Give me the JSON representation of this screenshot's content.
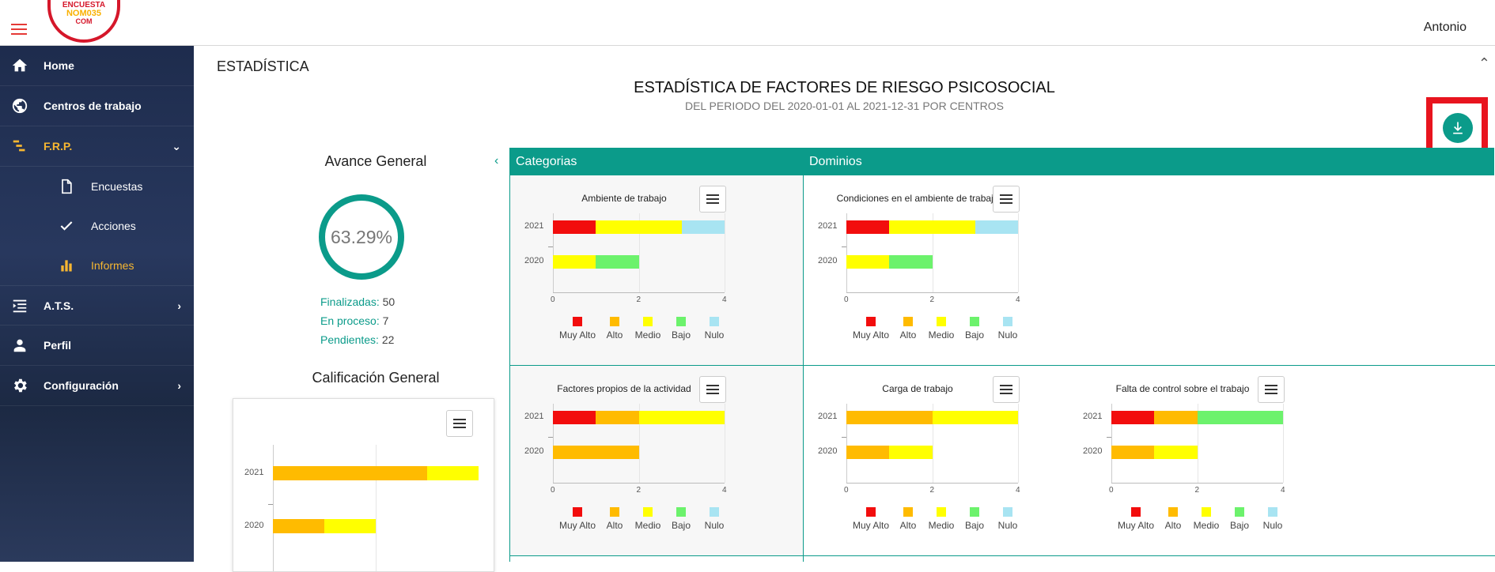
{
  "header": {
    "logo": {
      "line1": "ENCUESTA",
      "line2": "NOM035",
      "line3": "COM"
    },
    "user_name": "Antonio"
  },
  "sidebar": {
    "items": [
      {
        "label": "Home",
        "icon": "home-icon"
      },
      {
        "label": "Centros de trabajo",
        "icon": "globe-icon"
      },
      {
        "label": "F.R.P.",
        "icon": "frp-icon"
      },
      {
        "label": "A.T.S.",
        "icon": "list-indent-icon"
      },
      {
        "label": "Perfil",
        "icon": "person-icon"
      },
      {
        "label": "Configuración",
        "icon": "gear-icon"
      }
    ],
    "subitems": [
      {
        "label": "Encuestas",
        "icon": "document-icon"
      },
      {
        "label": "Acciones",
        "icon": "check-icon"
      },
      {
        "label": "Informes",
        "icon": "bar-chart-icon"
      }
    ]
  },
  "page": {
    "title": "ESTADÍSTICA",
    "main_title": "ESTADÍSTICA DE FACTORES DE RIESGO PSICOSOCIAL",
    "subtitle": "DEL PERIODO DEL 2020-01-01 AL 2021-12-31 POR CENTROS",
    "download_icon": "download-icon"
  },
  "avance": {
    "title": "Avance General",
    "percent": "63.29%",
    "finalizadas_label": "Finalizadas:",
    "finalizadas_value": "50",
    "proceso_label": "En proceso:",
    "proceso_value": "7",
    "pendientes_label": "Pendientes:",
    "pendientes_value": "22"
  },
  "calificacion": {
    "title": "Calificación General"
  },
  "panels": {
    "categorias": "Categorias",
    "dominios": "Dominios"
  },
  "legend": [
    "Muy Alto",
    "Alto",
    "Medio",
    "Bajo",
    "Nulo"
  ],
  "colors": {
    "Muy Alto": "#f20d0d",
    "Alto": "#ffbb00",
    "Medio": "#ffff00",
    "Bajo": "#6cf26c",
    "Nulo": "#a8e4f2",
    "teal": "#0b9b8a"
  },
  "chart_data": [
    {
      "type": "bar",
      "title": "Calificación General",
      "stacked": true,
      "categories": [
        "2021",
        "2020"
      ],
      "series": [
        {
          "name": "Alto",
          "values": [
            3,
            1
          ]
        },
        {
          "name": "Medio",
          "values": [
            1,
            1
          ]
        }
      ],
      "xlim": [
        0,
        4
      ]
    },
    {
      "type": "bar",
      "title": "Ambiente de trabajo",
      "stacked": true,
      "categories": [
        "2021",
        "2020"
      ],
      "series": [
        {
          "name": "Muy Alto",
          "values": [
            1,
            0
          ]
        },
        {
          "name": "Alto",
          "values": [
            0,
            0
          ]
        },
        {
          "name": "Medio",
          "values": [
            2,
            1
          ]
        },
        {
          "name": "Bajo",
          "values": [
            0,
            1
          ]
        },
        {
          "name": "Nulo",
          "values": [
            1,
            0
          ]
        }
      ],
      "xticks": [
        "0",
        "2",
        "4"
      ],
      "xlim": [
        0,
        4
      ]
    },
    {
      "type": "bar",
      "title": "Condiciones en el ambiente de trabajo",
      "stacked": true,
      "categories": [
        "2021",
        "2020"
      ],
      "series": [
        {
          "name": "Muy Alto",
          "values": [
            1,
            0
          ]
        },
        {
          "name": "Alto",
          "values": [
            0,
            0
          ]
        },
        {
          "name": "Medio",
          "values": [
            2,
            1
          ]
        },
        {
          "name": "Bajo",
          "values": [
            0,
            1
          ]
        },
        {
          "name": "Nulo",
          "values": [
            1,
            0
          ]
        }
      ],
      "xticks": [
        "0",
        "2",
        "4"
      ],
      "xlim": [
        0,
        4
      ]
    },
    {
      "type": "bar",
      "title": "Factores propios de la actividad",
      "stacked": true,
      "categories": [
        "2021",
        "2020"
      ],
      "series": [
        {
          "name": "Muy Alto",
          "values": [
            1,
            0
          ]
        },
        {
          "name": "Alto",
          "values": [
            1,
            2
          ]
        },
        {
          "name": "Medio",
          "values": [
            2,
            0
          ]
        },
        {
          "name": "Bajo",
          "values": [
            0,
            0
          ]
        },
        {
          "name": "Nulo",
          "values": [
            0,
            0
          ]
        }
      ],
      "xticks": [
        "0",
        "2",
        "4"
      ],
      "xlim": [
        0,
        4
      ]
    },
    {
      "type": "bar",
      "title": "Carga de trabajo",
      "stacked": true,
      "categories": [
        "2021",
        "2020"
      ],
      "series": [
        {
          "name": "Muy Alto",
          "values": [
            0,
            0
          ]
        },
        {
          "name": "Alto",
          "values": [
            2,
            1
          ]
        },
        {
          "name": "Medio",
          "values": [
            2,
            1
          ]
        },
        {
          "name": "Bajo",
          "values": [
            0,
            0
          ]
        },
        {
          "name": "Nulo",
          "values": [
            0,
            0
          ]
        }
      ],
      "xticks": [
        "0",
        "2",
        "4"
      ],
      "xlim": [
        0,
        4
      ]
    },
    {
      "type": "bar",
      "title": "Falta de control sobre el trabajo",
      "stacked": true,
      "categories": [
        "2021",
        "2020"
      ],
      "series": [
        {
          "name": "Muy Alto",
          "values": [
            1,
            0
          ]
        },
        {
          "name": "Alto",
          "values": [
            1,
            1
          ]
        },
        {
          "name": "Medio",
          "values": [
            0,
            1
          ]
        },
        {
          "name": "Bajo",
          "values": [
            2,
            0
          ]
        },
        {
          "name": "Nulo",
          "values": [
            0,
            0
          ]
        }
      ],
      "xticks": [
        "0",
        "2",
        "4"
      ],
      "xlim": [
        0,
        4
      ]
    }
  ]
}
